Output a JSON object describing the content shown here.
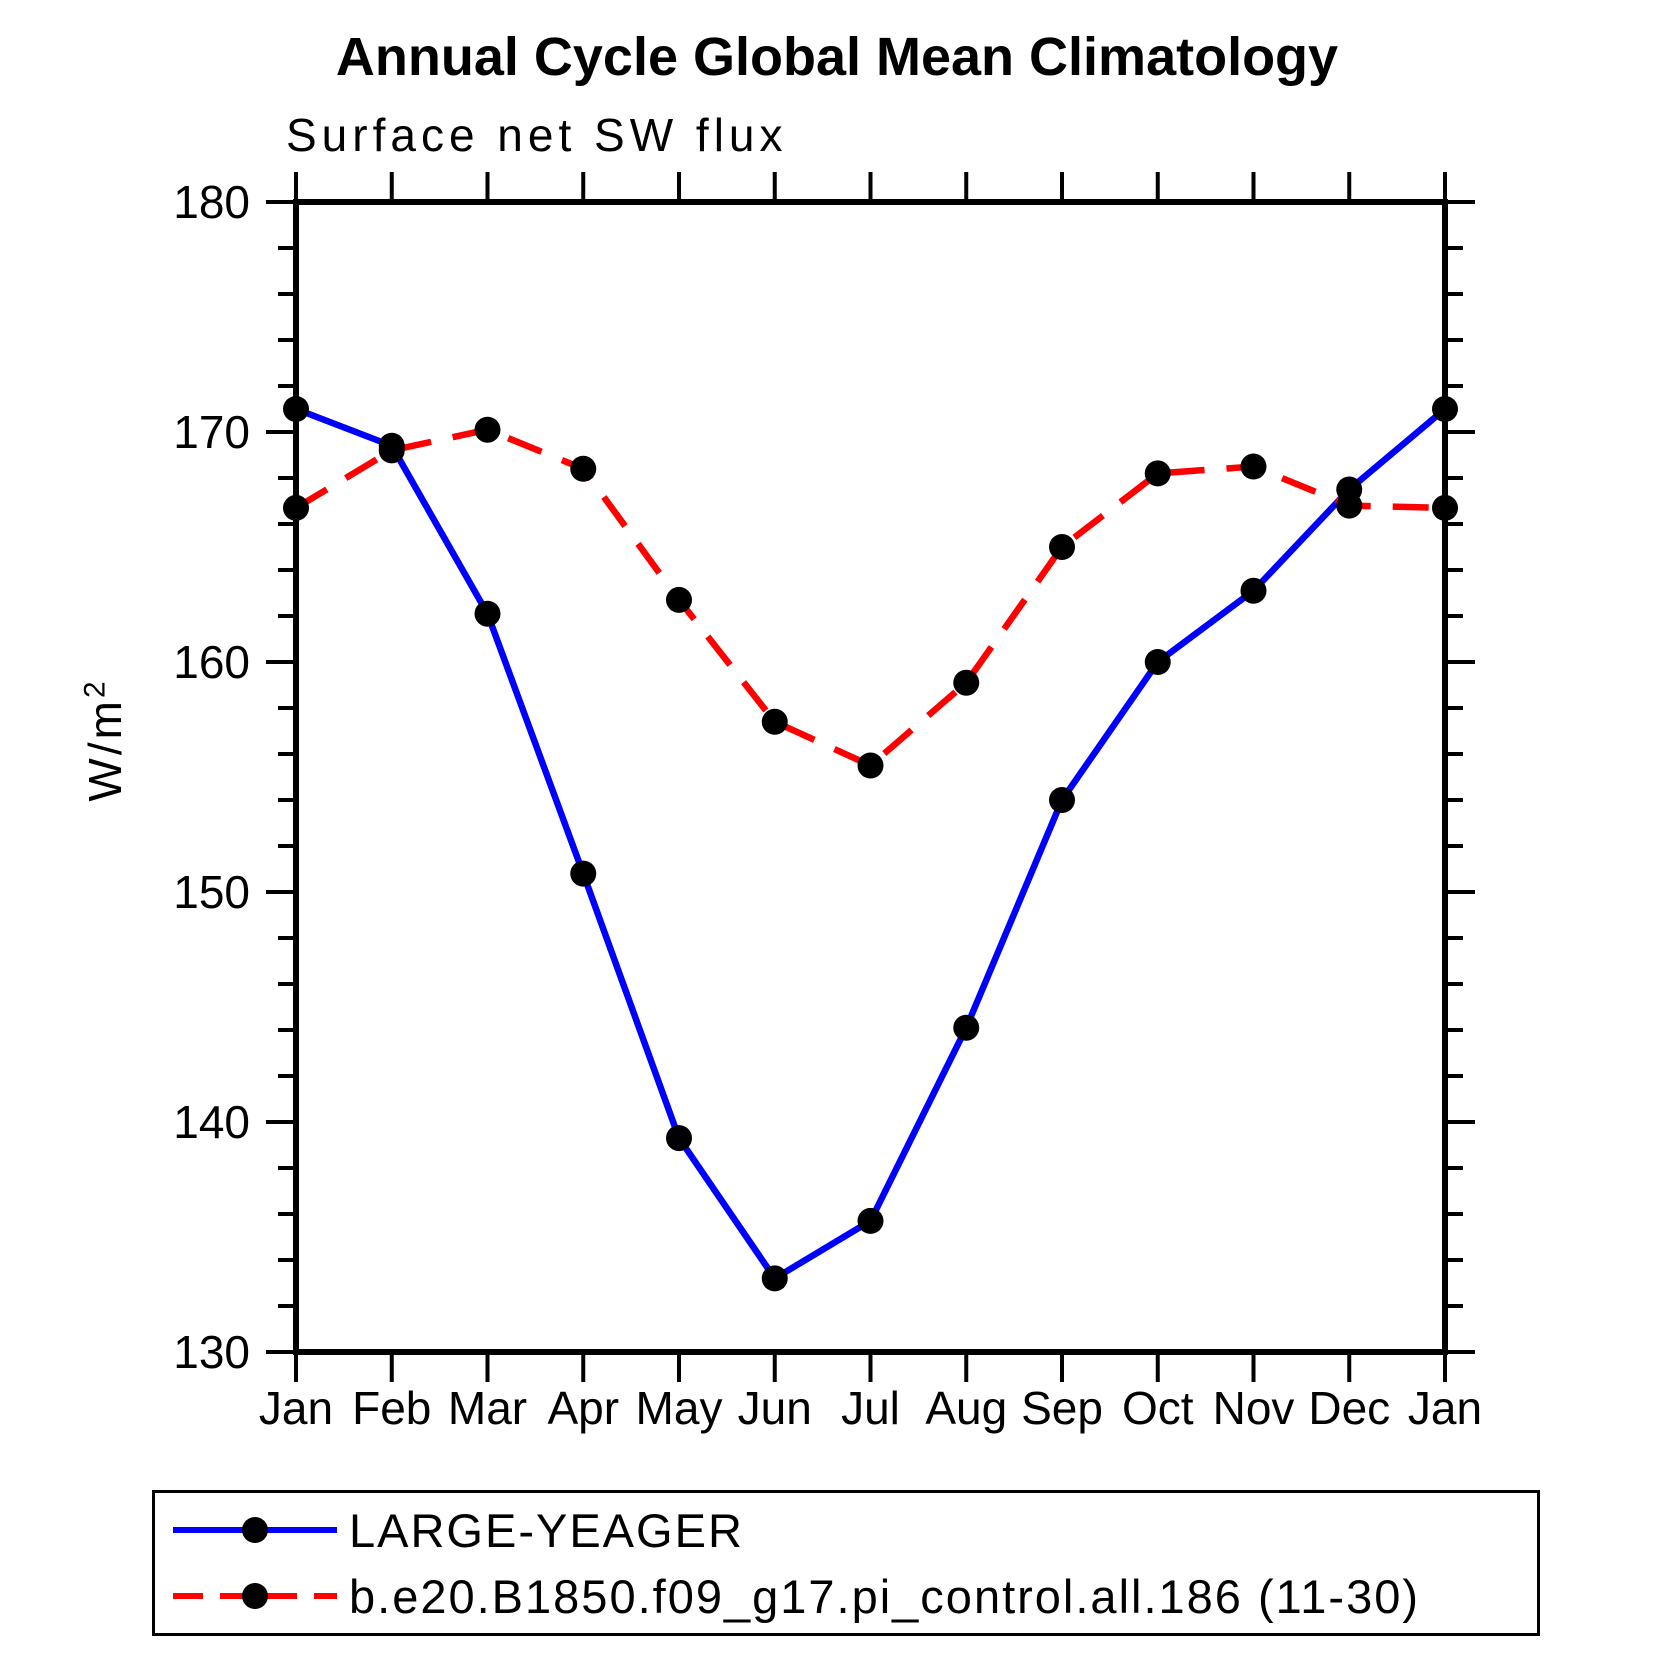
{
  "title": "Annual Cycle Global Mean Climatology",
  "subtitle": "Surface net SW flux",
  "y_axis": {
    "label": "W/m",
    "exponent": "2"
  },
  "colors": {
    "series1": "#0000ff",
    "series2": "#ff0000",
    "marker": "#000000",
    "axis": "#000000",
    "background": "#ffffff"
  },
  "chart_data": {
    "type": "line",
    "title": "Annual Cycle Global Mean Climatology",
    "subtitle": "Surface net SW flux",
    "xlabel": "",
    "ylabel": "W/m^2",
    "categories": [
      "Jan",
      "Feb",
      "Mar",
      "Apr",
      "May",
      "Jun",
      "Jul",
      "Aug",
      "Sep",
      "Oct",
      "Nov",
      "Dec",
      "Jan"
    ],
    "ylim": [
      130,
      180
    ],
    "y_major_ticks": [
      130,
      140,
      150,
      160,
      170,
      180
    ],
    "y_minor_tick_step": 2,
    "grid": false,
    "legend_position": "bottom",
    "series": [
      {
        "name": "LARGE-YEAGER",
        "color": "#0000ff",
        "style": "solid",
        "marker": "circle",
        "marker_color": "#000000",
        "values": [
          171.0,
          169.4,
          162.1,
          150.8,
          139.3,
          133.2,
          135.7,
          144.1,
          154.0,
          160.0,
          163.1,
          167.5,
          171.0
        ]
      },
      {
        "name": "b.e20.B1850.f09_g17.pi_control.all.186 (11-30)",
        "color": "#ff0000",
        "style": "dashed",
        "marker": "circle",
        "marker_color": "#000000",
        "values": [
          166.7,
          169.2,
          170.1,
          168.4,
          162.7,
          157.4,
          155.5,
          159.1,
          165.0,
          168.2,
          168.5,
          166.8,
          166.7
        ]
      }
    ]
  }
}
